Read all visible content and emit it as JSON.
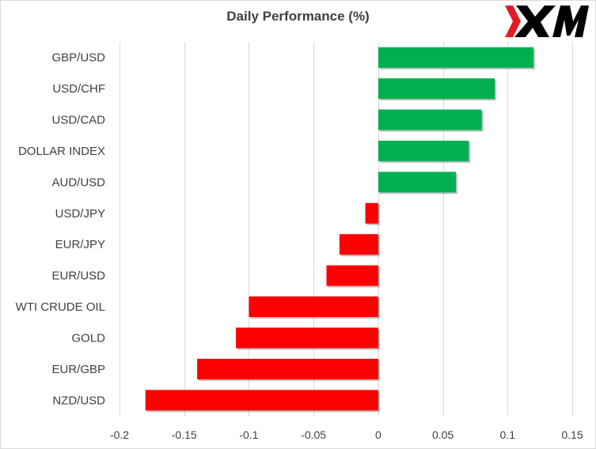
{
  "chart_data": {
    "type": "bar",
    "orientation": "horizontal",
    "title": "Daily Performance (%)",
    "xlabel": "",
    "ylabel": "",
    "categories": [
      "GBP/USD",
      "USD/CHF",
      "USD/CAD",
      "DOLLAR INDEX",
      "AUD/USD",
      "USD/JPY",
      "EUR/JPY",
      "EUR/USD",
      "WTI CRUDE OIL",
      "GOLD",
      "EUR/GBP",
      "NZD/USD"
    ],
    "values": [
      0.12,
      0.09,
      0.08,
      0.07,
      0.06,
      -0.01,
      -0.03,
      -0.04,
      -0.1,
      -0.11,
      -0.14,
      -0.18
    ],
    "xlim": [
      -0.2,
      0.15
    ],
    "x_ticks": [
      "-0.2",
      "-0.15",
      "-0.1",
      "-0.05",
      "0",
      "0.05",
      "0.1",
      "0.15"
    ],
    "x_tick_values": [
      -0.2,
      -0.15,
      -0.1,
      -0.05,
      0,
      0.05,
      0.1,
      0.15
    ],
    "grid": "vertical",
    "legend": "none",
    "colors": {
      "positive": "#00b050",
      "negative": "#ff0000"
    }
  },
  "logo": {
    "text": "XM",
    "name": "xm-logo",
    "color": "#000000",
    "accent": "#e31b23"
  }
}
